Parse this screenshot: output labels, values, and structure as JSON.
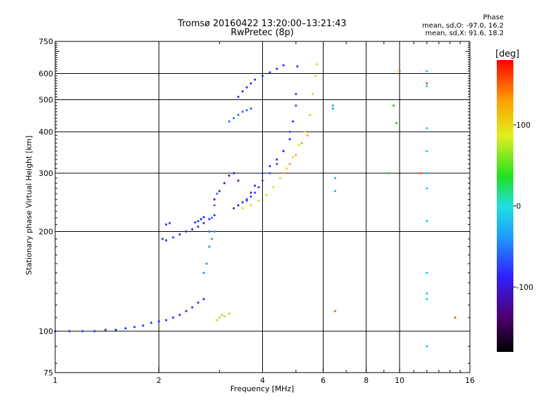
{
  "chart_data": {
    "type": "scatter",
    "title": "Tromsø 20160422 13:20:00–13:21:43",
    "subtitle": "RwPretec (8p)",
    "xlabel": "Frequency [MHz]",
    "ylabel": "Stationary phase Virtual Height [km]",
    "xscale": "log",
    "yscale": "log",
    "xlim": [
      1,
      16
    ],
    "ylim": [
      75,
      750
    ],
    "x_ticks": [
      1,
      2,
      4,
      6,
      8,
      10,
      16
    ],
    "x_tick_labels": [
      "1",
      "2",
      "4",
      "6",
      "8",
      "10",
      "16"
    ],
    "y_ticks": [
      75,
      100,
      200,
      300,
      400,
      500,
      600,
      750
    ],
    "y_tick_labels": [
      "75",
      "100",
      "200",
      "300",
      "400",
      "500",
      "600",
      "750"
    ],
    "grid": true,
    "phase_stats": {
      "heading": "Phase",
      "line_o": "mean, sd,O:  -97.0, 16.2",
      "line_x": "mean, sd,X:  91.6, 18.2"
    },
    "colorbar": {
      "label": "[deg]",
      "min": -180,
      "max": 180,
      "ticks": [
        100,
        0,
        -100
      ],
      "tick_labels": [
        "100",
        "0",
        "-100"
      ]
    },
    "series": [
      {
        "name": "",
        "color": "#2a3aff",
        "phase": -110,
        "x": [
          1.0,
          1.1,
          1.2,
          1.3,
          1.4,
          1.5,
          1.6,
          1.7,
          1.8,
          1.9,
          2.0,
          2.1,
          2.2,
          2.3,
          2.4,
          2.5,
          2.6,
          2.7
        ],
        "y": [
          100,
          100,
          100,
          100,
          101,
          101,
          102,
          103,
          104,
          106,
          107,
          108,
          110,
          112,
          115,
          118,
          122,
          125
        ]
      },
      {
        "name": "",
        "color": "#2a3aff",
        "phase": -110,
        "x": [
          2.05,
          2.1,
          2.2,
          2.3,
          2.4,
          2.5,
          2.6,
          2.7,
          2.8,
          2.9
        ],
        "y": [
          190,
          188,
          192,
          196,
          200,
          203,
          207,
          212,
          218,
          224
        ]
      },
      {
        "name": "",
        "color": "#2a3aff",
        "phase": -110,
        "x": [
          2.1,
          2.15
        ],
        "y": [
          210,
          212
        ]
      },
      {
        "name": "",
        "color": "#2a3aff",
        "phase": -110,
        "x": [
          2.55,
          2.6,
          2.65,
          2.7
        ],
        "y": [
          213,
          215,
          218,
          221
        ]
      },
      {
        "name": "",
        "color": "#3a6aff",
        "phase": -90,
        "x": [
          2.8,
          2.85,
          2.9,
          2.95
        ],
        "y": [
          200,
          220,
          240,
          260
        ]
      },
      {
        "name": "",
        "color": "#20a0ff",
        "phase": -70,
        "x": [
          2.7,
          2.75,
          2.8,
          2.85,
          2.9
        ],
        "y": [
          150,
          160,
          180,
          190,
          200
        ]
      },
      {
        "name": "",
        "color": "#6020c0",
        "phase": -130,
        "x": [
          2.9,
          3.0,
          3.1,
          3.2,
          3.3,
          3.4
        ],
        "y": [
          250,
          265,
          280,
          295,
          300,
          285
        ]
      },
      {
        "name": "",
        "color": "#6020c0",
        "phase": -130,
        "x": [
          3.3,
          3.4,
          3.5,
          3.6,
          3.7,
          3.8
        ],
        "y": [
          235,
          240,
          245,
          250,
          262,
          275
        ]
      },
      {
        "name": "",
        "color": "#3050ff",
        "phase": -100,
        "x": [
          3.5,
          3.6,
          3.7,
          3.8,
          3.9,
          4.0,
          4.2,
          4.4,
          4.6,
          4.8,
          5.0
        ],
        "y": [
          245,
          248,
          255,
          262,
          272,
          285,
          300,
          320,
          350,
          400,
          480
        ]
      },
      {
        "name": "",
        "color": "#2a3aff",
        "phase": -110,
        "x": [
          4.0,
          4.2,
          4.4,
          4.6,
          4.8,
          4.9,
          5.0,
          5.05
        ],
        "y": [
          300,
          315,
          330,
          350,
          380,
          430,
          520,
          630
        ]
      },
      {
        "name": "",
        "color": "#3a6aff",
        "phase": -90,
        "x": [
          3.2,
          3.3,
          3.4,
          3.5,
          3.6,
          3.7
        ],
        "y": [
          430,
          440,
          450,
          460,
          465,
          470
        ]
      },
      {
        "name": "",
        "color": "#2a3aff",
        "phase": -110,
        "x": [
          3.4,
          3.5,
          3.6,
          3.7,
          3.8,
          4.0,
          4.2,
          4.4,
          4.6
        ],
        "y": [
          510,
          530,
          545,
          560,
          575,
          590,
          605,
          620,
          635
        ]
      },
      {
        "name": "",
        "color": "#d8e020",
        "phase": 110,
        "x": [
          3.5,
          3.7,
          3.9,
          4.1,
          4.3,
          4.5,
          4.7,
          4.9,
          5.1,
          5.3,
          5.5,
          5.6,
          5.7,
          5.75
        ],
        "y": [
          235,
          240,
          248,
          258,
          272,
          290,
          310,
          335,
          365,
          400,
          450,
          520,
          590,
          640
        ]
      },
      {
        "name": "",
        "color": "#ffa030",
        "phase": 140,
        "x": [
          4.6,
          4.8,
          5.0,
          5.2,
          5.4
        ],
        "y": [
          300,
          320,
          340,
          370,
          390
        ]
      },
      {
        "name": "",
        "color": "#b0e040",
        "phase": 80,
        "x": [
          2.95,
          3.0,
          3.05,
          3.1,
          3.2
        ],
        "y": [
          108,
          110,
          112,
          111,
          113
        ]
      },
      {
        "name": "",
        "color": "#20b0ff",
        "phase": -60,
        "x": [
          6.4,
          6.4,
          6.5,
          6.5
        ],
        "y": [
          470,
          480,
          290,
          265
        ]
      },
      {
        "name": "",
        "color": "#20d0ff",
        "phase": -50,
        "x": [
          12.0,
          12.0,
          12.0,
          12.0,
          12.0,
          12.0,
          12.0,
          12.0,
          12.0,
          12.0,
          12.0
        ],
        "y": [
          610,
          550,
          410,
          350,
          300,
          270,
          215,
          150,
          130,
          125,
          90
        ]
      },
      {
        "name": "",
        "color": "#ff6020",
        "phase": 160,
        "x": [
          10.0,
          11.5,
          12.0,
          14.5,
          6.5
        ],
        "y": [
          610,
          300,
          560,
          110,
          115
        ]
      },
      {
        "name": "",
        "color": "#40c040",
        "phase": 40,
        "x": [
          9.6,
          9.8,
          9.3
        ],
        "y": [
          480,
          425,
          300
        ]
      }
    ]
  }
}
